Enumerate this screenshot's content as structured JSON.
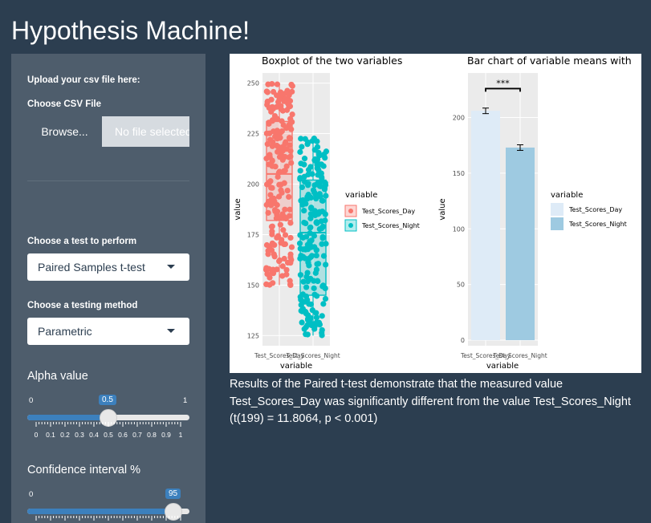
{
  "app": {
    "title": "Hypothesis Machine!"
  },
  "sidebar": {
    "upload_label": "Upload your csv file here:",
    "file_label": "Choose CSV File",
    "browse_label": "Browse...",
    "file_placeholder": "No file selected",
    "test_label": "Choose a test to perform",
    "test_value": "Paired Samples t-test",
    "method_label": "Choose a testing method",
    "method_value": "Parametric",
    "alpha": {
      "label": "Alpha value",
      "min": "0",
      "max": "1",
      "value": "0.5",
      "fraction": 0.5,
      "tick_labels": [
        "0",
        "0.1",
        "0.2",
        "0.3",
        "0.4",
        "0.5",
        "0.6",
        "0.7",
        "0.8",
        "0.9",
        "1"
      ]
    },
    "ci": {
      "label": "Confidence interval %",
      "min": "0",
      "value": "95",
      "fraction": 0.95
    }
  },
  "chart_data": [
    {
      "type": "box",
      "title": "Boxplot of the two variables",
      "xlabel": "variable",
      "ylabel": "value",
      "ylim": [
        120,
        255
      ],
      "yticks": [
        125,
        150,
        175,
        200,
        225,
        250
      ],
      "categories": [
        "Test_Scores_Day",
        "Test_Scores_Night"
      ],
      "legend_title": "variable",
      "legend_position": "right",
      "series": [
        {
          "name": "Test_Scores_Day",
          "color": "#f8766d",
          "q1": 182,
          "median": 205,
          "q3": 231,
          "min": 150,
          "max": 250
        },
        {
          "name": "Test_Scores_Night",
          "color": "#00bfc4",
          "q1": 145,
          "median": 176,
          "q3": 202,
          "min": 125,
          "max": 223
        }
      ]
    },
    {
      "type": "bar",
      "title": "Bar chart of variable means with",
      "xlabel": "variable",
      "ylabel": "value",
      "ylim": [
        -5,
        240
      ],
      "yticks": [
        0,
        50,
        100,
        150,
        200
      ],
      "categories": [
        "Test_Scores_Day",
        "Test_Scores_Night"
      ],
      "legend_title": "variable",
      "legend_position": "right",
      "series": [
        {
          "name": "Test_Scores_Day",
          "color": "#deebf7",
          "value": 206,
          "err": 2.5
        },
        {
          "name": "Test_Scores_Night",
          "color": "#9ecae1",
          "value": 173,
          "err": 2.5
        }
      ],
      "annotation": "***"
    }
  ],
  "results": {
    "text": "Results of the Paired t-test demonstrate that the measured value Test_Scores_Day was significantly different from the value Test_Scores_Night (t(199) = 11.8064, p < 0.001)"
  }
}
